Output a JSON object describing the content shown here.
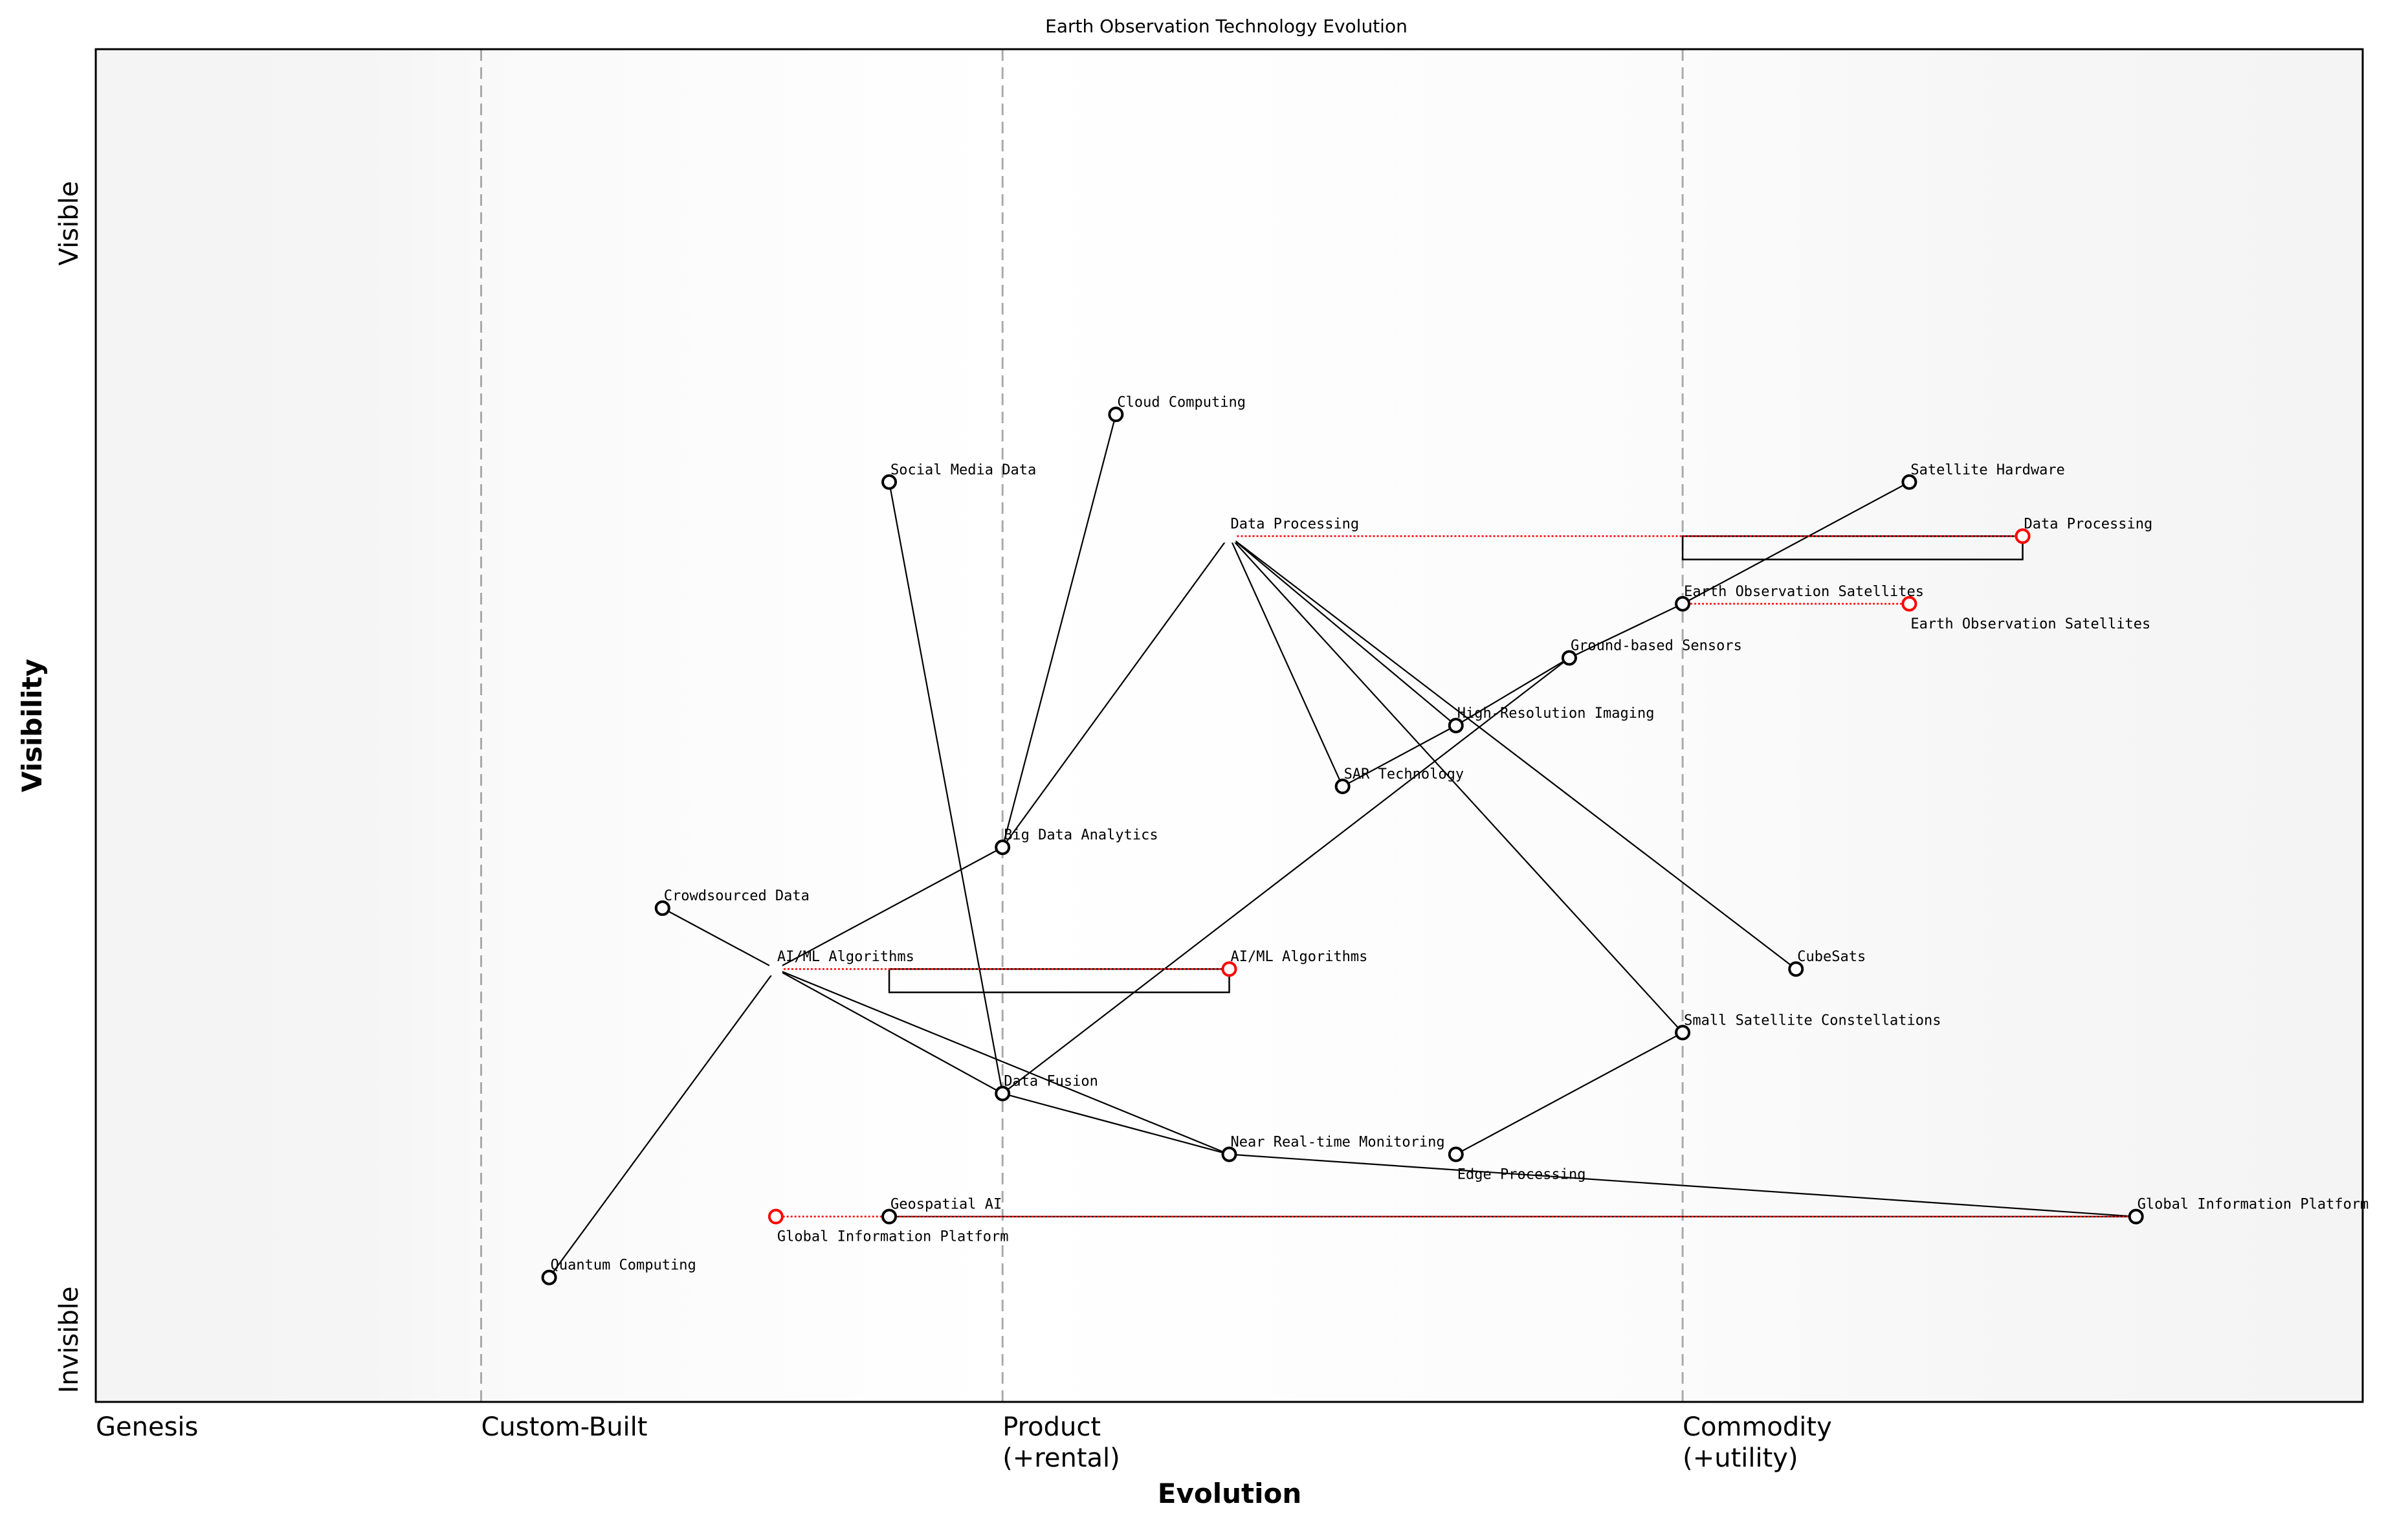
{
  "chart_data": {
    "type": "wardley-map",
    "title": "Earth Observation Technology Evolution",
    "xlabel": "Evolution",
    "ylabel": "Visibility",
    "y_top_label": "Visible",
    "y_bottom_label": "Invisible",
    "stages": [
      {
        "label": "Genesis",
        "x": 0.0
      },
      {
        "label": "Custom-Built",
        "x": 0.17
      },
      {
        "label": "Product\n(+rental)",
        "x": 0.4
      },
      {
        "label": "Commodity\n(+utility)",
        "x": 0.7
      }
    ],
    "xlim": [
      0,
      1
    ],
    "ylim": [
      0,
      1
    ],
    "components": [
      {
        "name": "Cloud Computing",
        "evolution": 0.45,
        "visibility": 0.73
      },
      {
        "name": "Social Media Data",
        "evolution": 0.35,
        "visibility": 0.68
      },
      {
        "name": "Data Processing",
        "evolution": 0.5,
        "visibility": 0.64,
        "hidden_marker": true
      },
      {
        "name": "Satellite Hardware",
        "evolution": 0.8,
        "visibility": 0.68
      },
      {
        "name": "Earth Observation Satellites",
        "evolution": 0.7,
        "visibility": 0.59
      },
      {
        "name": "Ground-based Sensors",
        "evolution": 0.65,
        "visibility": 0.55
      },
      {
        "name": "High-Resolution Imaging",
        "evolution": 0.6,
        "visibility": 0.5
      },
      {
        "name": "SAR Technology",
        "evolution": 0.55,
        "visibility": 0.455
      },
      {
        "name": "Big Data Analytics",
        "evolution": 0.4,
        "visibility": 0.41
      },
      {
        "name": "Crowdsourced Data",
        "evolution": 0.25,
        "visibility": 0.365
      },
      {
        "name": "AI/ML Algorithms",
        "evolution": 0.3,
        "visibility": 0.32,
        "hidden_marker": true
      },
      {
        "name": "CubeSats",
        "evolution": 0.75,
        "visibility": 0.32
      },
      {
        "name": "Small Satellite Constellations",
        "evolution": 0.7,
        "visibility": 0.273
      },
      {
        "name": "Data Fusion",
        "evolution": 0.4,
        "visibility": 0.228
      },
      {
        "name": "Near Real-time Monitoring",
        "evolution": 0.5,
        "visibility": 0.183
      },
      {
        "name": "Edge Processing",
        "evolution": 0.6,
        "visibility": 0.183
      },
      {
        "name": "Geospatial AI",
        "evolution": 0.35,
        "visibility": 0.137
      },
      {
        "name": "Global Information Platform",
        "evolution": 0.9,
        "visibility": 0.137
      },
      {
        "name": "Quantum Computing",
        "evolution": 0.2,
        "visibility": 0.092
      }
    ],
    "links": [
      [
        "Cloud Computing",
        "Big Data Analytics"
      ],
      [
        "Social Media Data",
        "Data Fusion"
      ],
      [
        "Data Processing",
        "Big Data Analytics"
      ],
      [
        "Data Processing",
        "SAR Technology"
      ],
      [
        "Data Processing",
        "High-Resolution Imaging"
      ],
      [
        "Data Processing",
        "CubeSats"
      ],
      [
        "Data Processing",
        "Small Satellite Constellations"
      ],
      [
        "Satellite Hardware",
        "Earth Observation Satellites"
      ],
      [
        "Earth Observation Satellites",
        "Ground-based Sensors"
      ],
      [
        "Ground-based Sensors",
        "High-Resolution Imaging"
      ],
      [
        "High-Resolution Imaging",
        "SAR Technology"
      ],
      [
        "Ground-based Sensors",
        "Data Fusion"
      ],
      [
        "Big Data Analytics",
        "AI/ML Algorithms"
      ],
      [
        "Crowdsourced Data",
        "AI/ML Algorithms"
      ],
      [
        "AI/ML Algorithms",
        "Quantum Computing"
      ],
      [
        "AI/ML Algorithms",
        "Data Fusion"
      ],
      [
        "AI/ML Algorithms",
        "Near Real-time Monitoring"
      ],
      [
        "Data Fusion",
        "Near Real-time Monitoring"
      ],
      [
        "Near Real-time Monitoring",
        "Global Information Platform"
      ],
      [
        "Edge Processing",
        "Small Satellite Constellations"
      ],
      [
        "Geospatial AI",
        "Global Information Platform"
      ]
    ],
    "evolutions": [
      {
        "name": "Data Processing",
        "from": 0.5,
        "to": 0.85,
        "visibility": 0.64
      },
      {
        "name": "Earth Observation Satellites",
        "from": 0.7,
        "to": 0.8,
        "visibility": 0.59
      },
      {
        "name": "AI/ML Algorithms",
        "from": 0.3,
        "to": 0.5,
        "visibility": 0.32
      },
      {
        "name": "Global Information Platform",
        "from": 0.9,
        "to": 0.3,
        "visibility": 0.137
      }
    ],
    "pipelines": [
      {
        "name": "Data Processing",
        "start": 0.7,
        "end": 0.85,
        "visibility": 0.64
      },
      {
        "name": "AI/ML Algorithms",
        "start": 0.35,
        "end": 0.5,
        "visibility": 0.32
      }
    ],
    "colors": {
      "marker": "#000000",
      "evolved": "#ff0000",
      "stage_line": "#aaaaaa",
      "background_edge": "#f5f5f5",
      "background_mid": "#ffffff"
    }
  }
}
